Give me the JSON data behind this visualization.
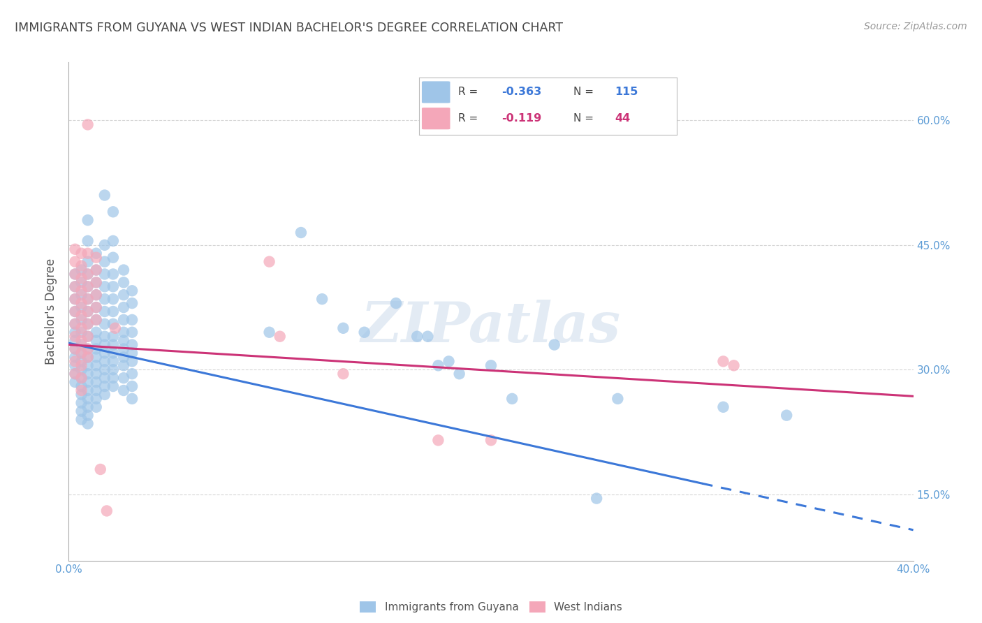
{
  "title": "IMMIGRANTS FROM GUYANA VS WEST INDIAN BACHELOR'S DEGREE CORRELATION CHART",
  "source": "Source: ZipAtlas.com",
  "ylabel": "Bachelor's Degree",
  "xlim": [
    0.0,
    0.4
  ],
  "ylim": [
    0.07,
    0.67
  ],
  "yticks": [
    0.15,
    0.3,
    0.45,
    0.6
  ],
  "ytick_labels": [
    "15.0%",
    "30.0%",
    "45.0%",
    "60.0%"
  ],
  "blue_color": "#9fc5e8",
  "pink_color": "#f4a7b9",
  "blue_line_color": "#3c78d8",
  "pink_line_color": "#cc3377",
  "blue_scatter": [
    [
      0.003,
      0.415
    ],
    [
      0.003,
      0.4
    ],
    [
      0.003,
      0.385
    ],
    [
      0.003,
      0.37
    ],
    [
      0.003,
      0.355
    ],
    [
      0.003,
      0.345
    ],
    [
      0.003,
      0.335
    ],
    [
      0.003,
      0.325
    ],
    [
      0.003,
      0.315
    ],
    [
      0.003,
      0.305
    ],
    [
      0.003,
      0.295
    ],
    [
      0.003,
      0.285
    ],
    [
      0.006,
      0.42
    ],
    [
      0.006,
      0.405
    ],
    [
      0.006,
      0.39
    ],
    [
      0.006,
      0.375
    ],
    [
      0.006,
      0.36
    ],
    [
      0.006,
      0.345
    ],
    [
      0.006,
      0.33
    ],
    [
      0.006,
      0.32
    ],
    [
      0.006,
      0.31
    ],
    [
      0.006,
      0.3
    ],
    [
      0.006,
      0.29
    ],
    [
      0.006,
      0.28
    ],
    [
      0.006,
      0.27
    ],
    [
      0.006,
      0.26
    ],
    [
      0.006,
      0.25
    ],
    [
      0.006,
      0.24
    ],
    [
      0.009,
      0.48
    ],
    [
      0.009,
      0.455
    ],
    [
      0.009,
      0.43
    ],
    [
      0.009,
      0.415
    ],
    [
      0.009,
      0.4
    ],
    [
      0.009,
      0.385
    ],
    [
      0.009,
      0.37
    ],
    [
      0.009,
      0.355
    ],
    [
      0.009,
      0.34
    ],
    [
      0.009,
      0.325
    ],
    [
      0.009,
      0.315
    ],
    [
      0.009,
      0.305
    ],
    [
      0.009,
      0.295
    ],
    [
      0.009,
      0.285
    ],
    [
      0.009,
      0.275
    ],
    [
      0.009,
      0.265
    ],
    [
      0.009,
      0.255
    ],
    [
      0.009,
      0.245
    ],
    [
      0.009,
      0.235
    ],
    [
      0.013,
      0.44
    ],
    [
      0.013,
      0.42
    ],
    [
      0.013,
      0.405
    ],
    [
      0.013,
      0.39
    ],
    [
      0.013,
      0.375
    ],
    [
      0.013,
      0.36
    ],
    [
      0.013,
      0.345
    ],
    [
      0.013,
      0.335
    ],
    [
      0.013,
      0.325
    ],
    [
      0.013,
      0.315
    ],
    [
      0.013,
      0.305
    ],
    [
      0.013,
      0.295
    ],
    [
      0.013,
      0.285
    ],
    [
      0.013,
      0.275
    ],
    [
      0.013,
      0.265
    ],
    [
      0.013,
      0.255
    ],
    [
      0.017,
      0.51
    ],
    [
      0.017,
      0.45
    ],
    [
      0.017,
      0.43
    ],
    [
      0.017,
      0.415
    ],
    [
      0.017,
      0.4
    ],
    [
      0.017,
      0.385
    ],
    [
      0.017,
      0.37
    ],
    [
      0.017,
      0.355
    ],
    [
      0.017,
      0.34
    ],
    [
      0.017,
      0.33
    ],
    [
      0.017,
      0.32
    ],
    [
      0.017,
      0.31
    ],
    [
      0.017,
      0.3
    ],
    [
      0.017,
      0.29
    ],
    [
      0.017,
      0.28
    ],
    [
      0.017,
      0.27
    ],
    [
      0.021,
      0.49
    ],
    [
      0.021,
      0.455
    ],
    [
      0.021,
      0.435
    ],
    [
      0.021,
      0.415
    ],
    [
      0.021,
      0.4
    ],
    [
      0.021,
      0.385
    ],
    [
      0.021,
      0.37
    ],
    [
      0.021,
      0.355
    ],
    [
      0.021,
      0.34
    ],
    [
      0.021,
      0.33
    ],
    [
      0.021,
      0.32
    ],
    [
      0.021,
      0.31
    ],
    [
      0.021,
      0.3
    ],
    [
      0.021,
      0.29
    ],
    [
      0.021,
      0.28
    ],
    [
      0.026,
      0.42
    ],
    [
      0.026,
      0.405
    ],
    [
      0.026,
      0.39
    ],
    [
      0.026,
      0.375
    ],
    [
      0.026,
      0.36
    ],
    [
      0.026,
      0.345
    ],
    [
      0.026,
      0.335
    ],
    [
      0.026,
      0.325
    ],
    [
      0.026,
      0.315
    ],
    [
      0.026,
      0.305
    ],
    [
      0.026,
      0.29
    ],
    [
      0.026,
      0.275
    ],
    [
      0.03,
      0.395
    ],
    [
      0.03,
      0.38
    ],
    [
      0.03,
      0.36
    ],
    [
      0.03,
      0.345
    ],
    [
      0.03,
      0.33
    ],
    [
      0.03,
      0.32
    ],
    [
      0.03,
      0.31
    ],
    [
      0.03,
      0.295
    ],
    [
      0.03,
      0.28
    ],
    [
      0.03,
      0.265
    ],
    [
      0.095,
      0.345
    ],
    [
      0.11,
      0.465
    ],
    [
      0.12,
      0.385
    ],
    [
      0.13,
      0.35
    ],
    [
      0.14,
      0.345
    ],
    [
      0.155,
      0.38
    ],
    [
      0.165,
      0.34
    ],
    [
      0.17,
      0.34
    ],
    [
      0.175,
      0.305
    ],
    [
      0.18,
      0.31
    ],
    [
      0.185,
      0.295
    ],
    [
      0.2,
      0.305
    ],
    [
      0.21,
      0.265
    ],
    [
      0.23,
      0.33
    ],
    [
      0.25,
      0.145
    ],
    [
      0.26,
      0.265
    ],
    [
      0.31,
      0.255
    ],
    [
      0.34,
      0.245
    ]
  ],
  "pink_scatter": [
    [
      0.003,
      0.445
    ],
    [
      0.003,
      0.43
    ],
    [
      0.003,
      0.415
    ],
    [
      0.003,
      0.4
    ],
    [
      0.003,
      0.385
    ],
    [
      0.003,
      0.37
    ],
    [
      0.003,
      0.355
    ],
    [
      0.003,
      0.34
    ],
    [
      0.003,
      0.325
    ],
    [
      0.003,
      0.31
    ],
    [
      0.003,
      0.295
    ],
    [
      0.006,
      0.44
    ],
    [
      0.006,
      0.425
    ],
    [
      0.006,
      0.41
    ],
    [
      0.006,
      0.395
    ],
    [
      0.006,
      0.38
    ],
    [
      0.006,
      0.365
    ],
    [
      0.006,
      0.35
    ],
    [
      0.006,
      0.335
    ],
    [
      0.006,
      0.32
    ],
    [
      0.006,
      0.305
    ],
    [
      0.006,
      0.29
    ],
    [
      0.006,
      0.275
    ],
    [
      0.009,
      0.595
    ],
    [
      0.009,
      0.44
    ],
    [
      0.009,
      0.415
    ],
    [
      0.009,
      0.4
    ],
    [
      0.009,
      0.385
    ],
    [
      0.009,
      0.37
    ],
    [
      0.009,
      0.355
    ],
    [
      0.009,
      0.34
    ],
    [
      0.009,
      0.325
    ],
    [
      0.009,
      0.315
    ],
    [
      0.013,
      0.435
    ],
    [
      0.013,
      0.42
    ],
    [
      0.013,
      0.405
    ],
    [
      0.013,
      0.39
    ],
    [
      0.013,
      0.375
    ],
    [
      0.013,
      0.36
    ],
    [
      0.015,
      0.18
    ],
    [
      0.018,
      0.13
    ],
    [
      0.022,
      0.35
    ],
    [
      0.095,
      0.43
    ],
    [
      0.1,
      0.34
    ],
    [
      0.13,
      0.295
    ],
    [
      0.175,
      0.215
    ],
    [
      0.2,
      0.215
    ],
    [
      0.31,
      0.31
    ],
    [
      0.315,
      0.305
    ]
  ],
  "blue_trend_start_x": 0.0,
  "blue_trend_start_y": 0.332,
  "blue_trend_solid_end_x": 0.3,
  "blue_trend_solid_end_y": 0.163,
  "blue_trend_dash_end_x": 0.4,
  "blue_trend_dash_end_y": 0.107,
  "pink_trend_start_x": 0.0,
  "pink_trend_start_y": 0.33,
  "pink_trend_end_x": 0.4,
  "pink_trend_end_y": 0.268,
  "watermark": "ZIPatlas",
  "background_color": "#ffffff",
  "grid_color": "#cccccc",
  "title_color": "#444444",
  "tick_color": "#5b9bd5",
  "legend_text_color": "#444444",
  "legend_value_color": "#3c78d8",
  "legend_pink_value_color": "#cc3377"
}
